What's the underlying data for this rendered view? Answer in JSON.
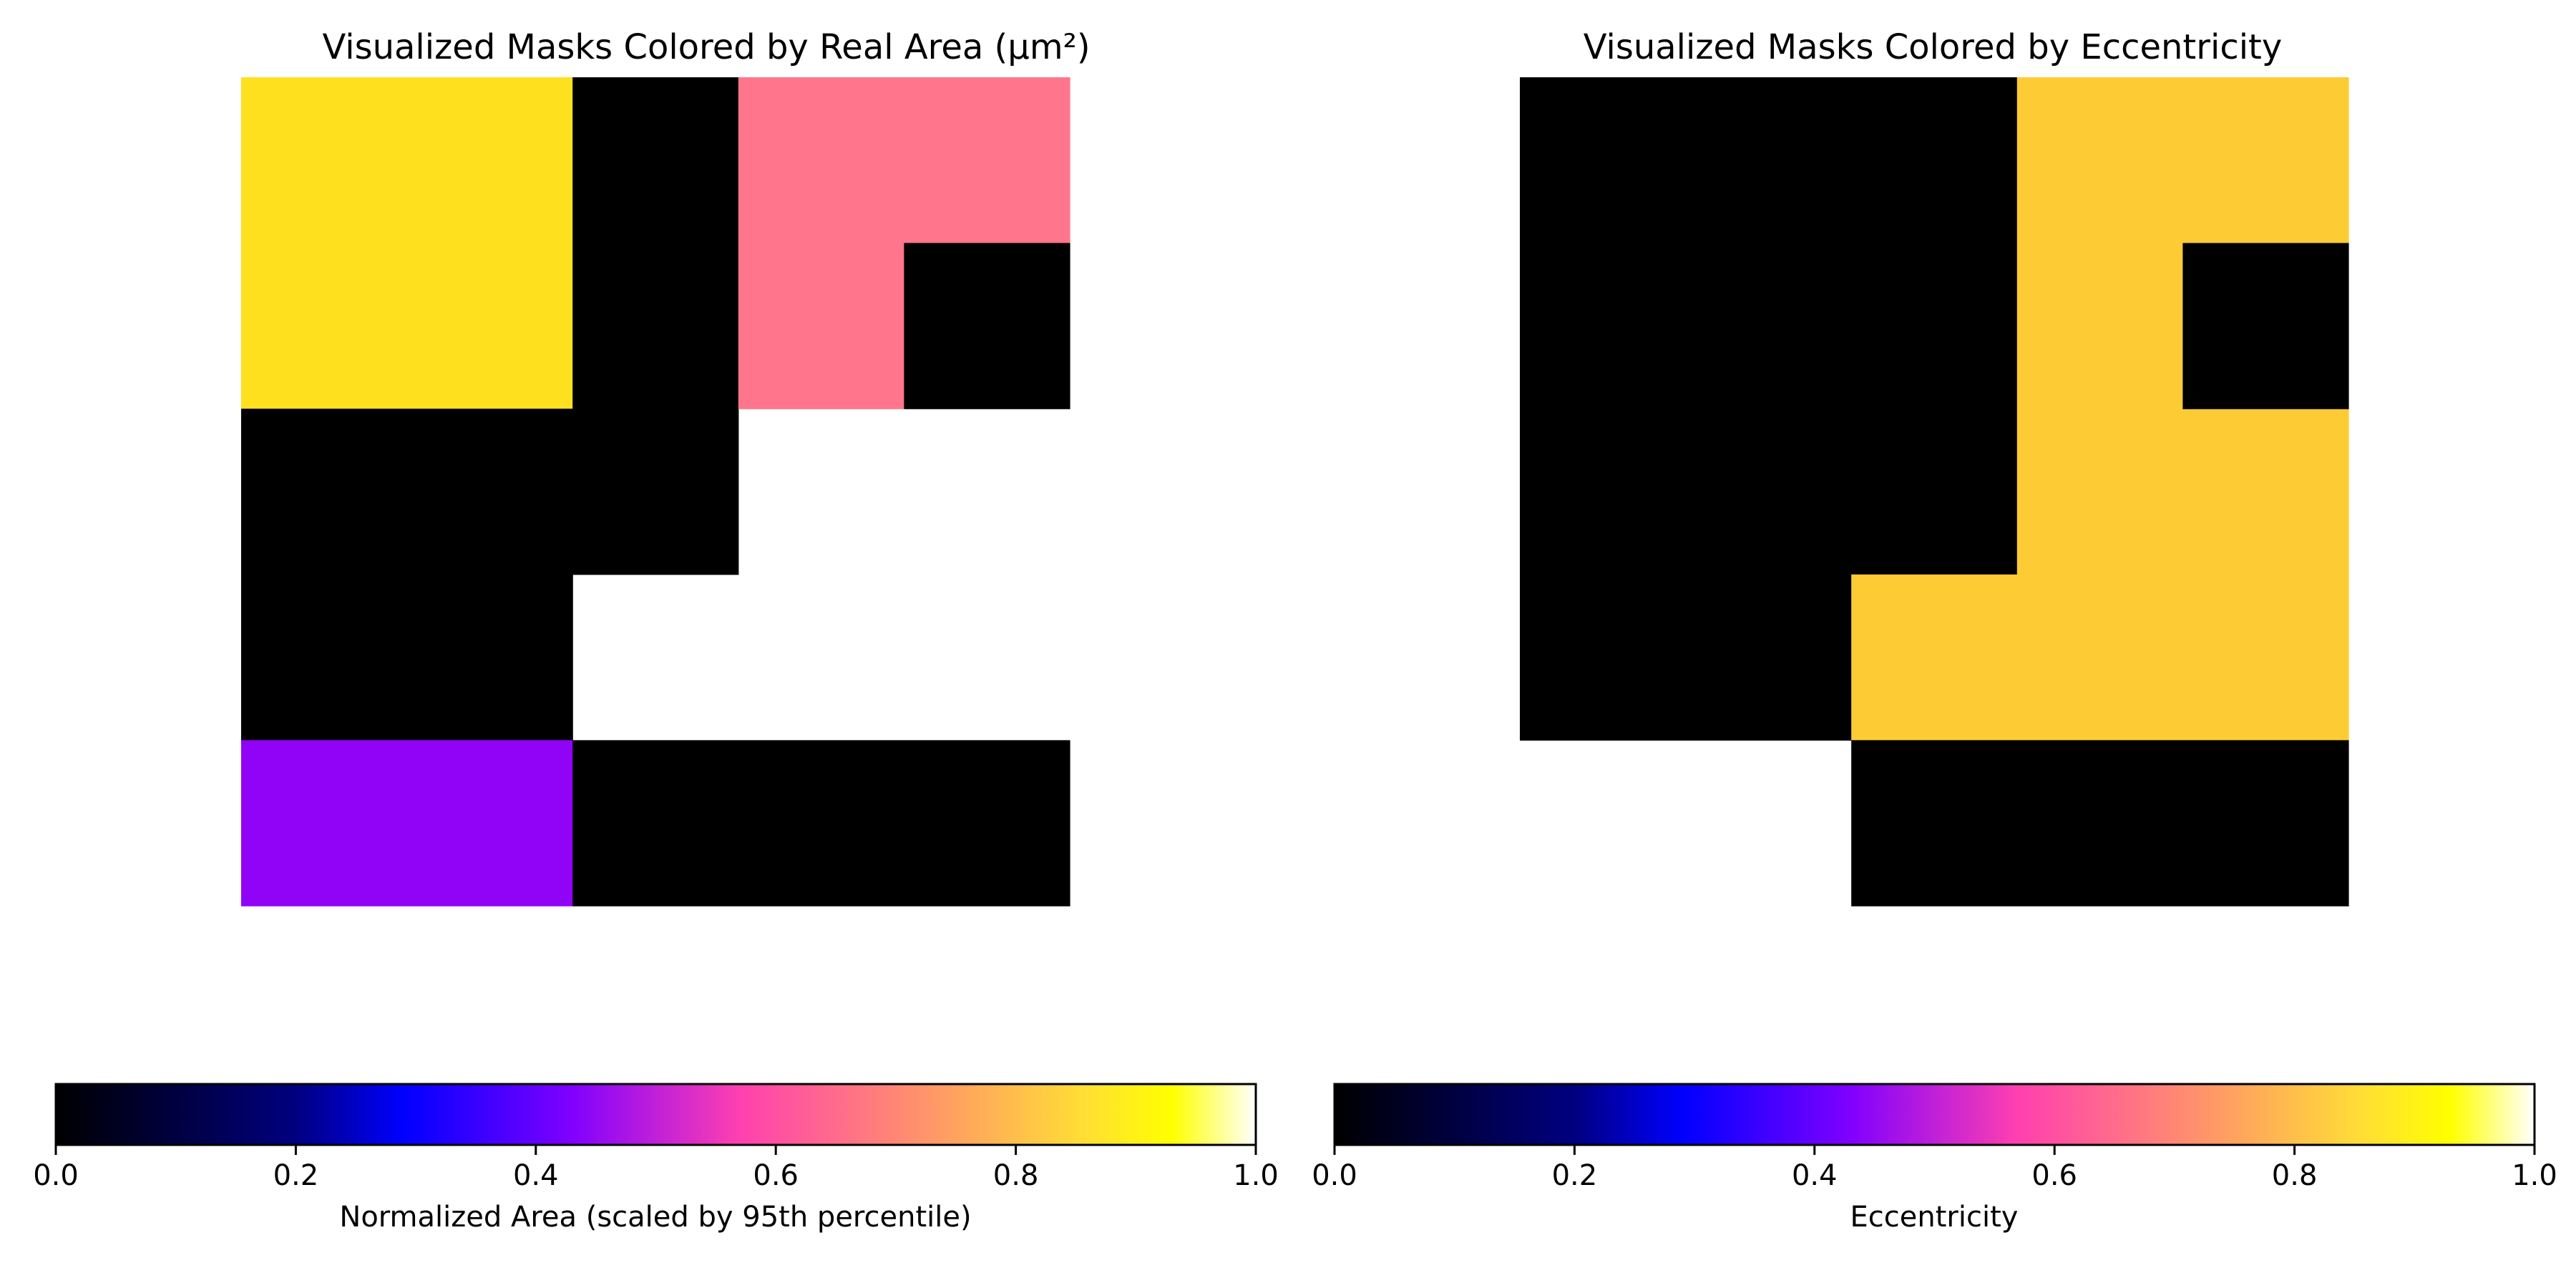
{
  "chart_data": [
    {
      "type": "heatmap",
      "title": "Visualized Masks Colored by Real Area (µm²)",
      "rows": 5,
      "cols": 5,
      "cells": [
        {
          "row": 0,
          "col": 0,
          "w": 2,
          "h": 2,
          "value": 0.88,
          "color": "#ffe01f"
        },
        {
          "row": 0,
          "col": 2,
          "w": 1,
          "h": 3,
          "value": 0.0,
          "color": "#000000"
        },
        {
          "row": 0,
          "col": 3,
          "w": 2,
          "h": 1,
          "value": 0.66,
          "color": "#ff758b"
        },
        {
          "row": 1,
          "col": 3,
          "w": 1,
          "h": 1,
          "value": 0.66,
          "color": "#ff758b"
        },
        {
          "row": 1,
          "col": 4,
          "w": 1,
          "h": 1,
          "value": 0.0,
          "color": "#000000"
        },
        {
          "row": 2,
          "col": 0,
          "w": 2,
          "h": 2,
          "value": 0.0,
          "color": "#000000"
        },
        {
          "row": 4,
          "col": 0,
          "w": 2,
          "h": 1,
          "value": 0.42,
          "color": "#9103f6"
        },
        {
          "row": 4,
          "col": 2,
          "w": 3,
          "h": 1,
          "value": 0.0,
          "color": "#000000"
        }
      ],
      "colorbar": {
        "label": "Normalized Area (scaled by 95th percentile)",
        "ticks": [
          "0.0",
          "0.2",
          "0.4",
          "0.6",
          "0.8",
          "1.0"
        ],
        "range": [
          0.0,
          1.0
        ],
        "colormap": "gnuplot2"
      }
    },
    {
      "type": "heatmap",
      "title": "Visualized Masks Colored by Eccentricity",
      "rows": 5,
      "cols": 5,
      "cells": [
        {
          "row": 0,
          "col": 0,
          "w": 3,
          "h": 3,
          "value": 0.0,
          "color": "#000000"
        },
        {
          "row": 3,
          "col": 0,
          "w": 2,
          "h": 1,
          "value": 0.0,
          "color": "#000000"
        },
        {
          "row": 0,
          "col": 3,
          "w": 2,
          "h": 1,
          "value": 0.85,
          "color": "#fdcb33"
        },
        {
          "row": 1,
          "col": 3,
          "w": 1,
          "h": 2,
          "value": 0.85,
          "color": "#fdcb33"
        },
        {
          "row": 2,
          "col": 4,
          "w": 1,
          "h": 1,
          "value": 0.85,
          "color": "#fdcb33"
        },
        {
          "row": 3,
          "col": 2,
          "w": 3,
          "h": 1,
          "value": 0.85,
          "color": "#fdcb33"
        },
        {
          "row": 1,
          "col": 4,
          "w": 1,
          "h": 1,
          "value": 0.0,
          "color": "#000000"
        },
        {
          "row": 4,
          "col": 2,
          "w": 3,
          "h": 1,
          "value": 0.0,
          "color": "#000000"
        }
      ],
      "colorbar": {
        "label": "Eccentricity",
        "ticks": [
          "0.0",
          "0.2",
          "0.4",
          "0.6",
          "0.8",
          "1.0"
        ],
        "range": [
          0.0,
          1.0
        ],
        "colormap": "gnuplot2"
      }
    }
  ],
  "colormap_stops": [
    {
      "offset": 0.0,
      "color": "#000000"
    },
    {
      "offset": 0.2,
      "color": "#000080"
    },
    {
      "offset": 0.29,
      "color": "#0000ff"
    },
    {
      "offset": 0.43,
      "color": "#8000ff"
    },
    {
      "offset": 0.57,
      "color": "#ff40b0"
    },
    {
      "offset": 0.71,
      "color": "#ff8c70"
    },
    {
      "offset": 0.86,
      "color": "#ffe033"
    },
    {
      "offset": 0.93,
      "color": "#ffff00"
    },
    {
      "offset": 1.0,
      "color": "#ffffff"
    }
  ]
}
